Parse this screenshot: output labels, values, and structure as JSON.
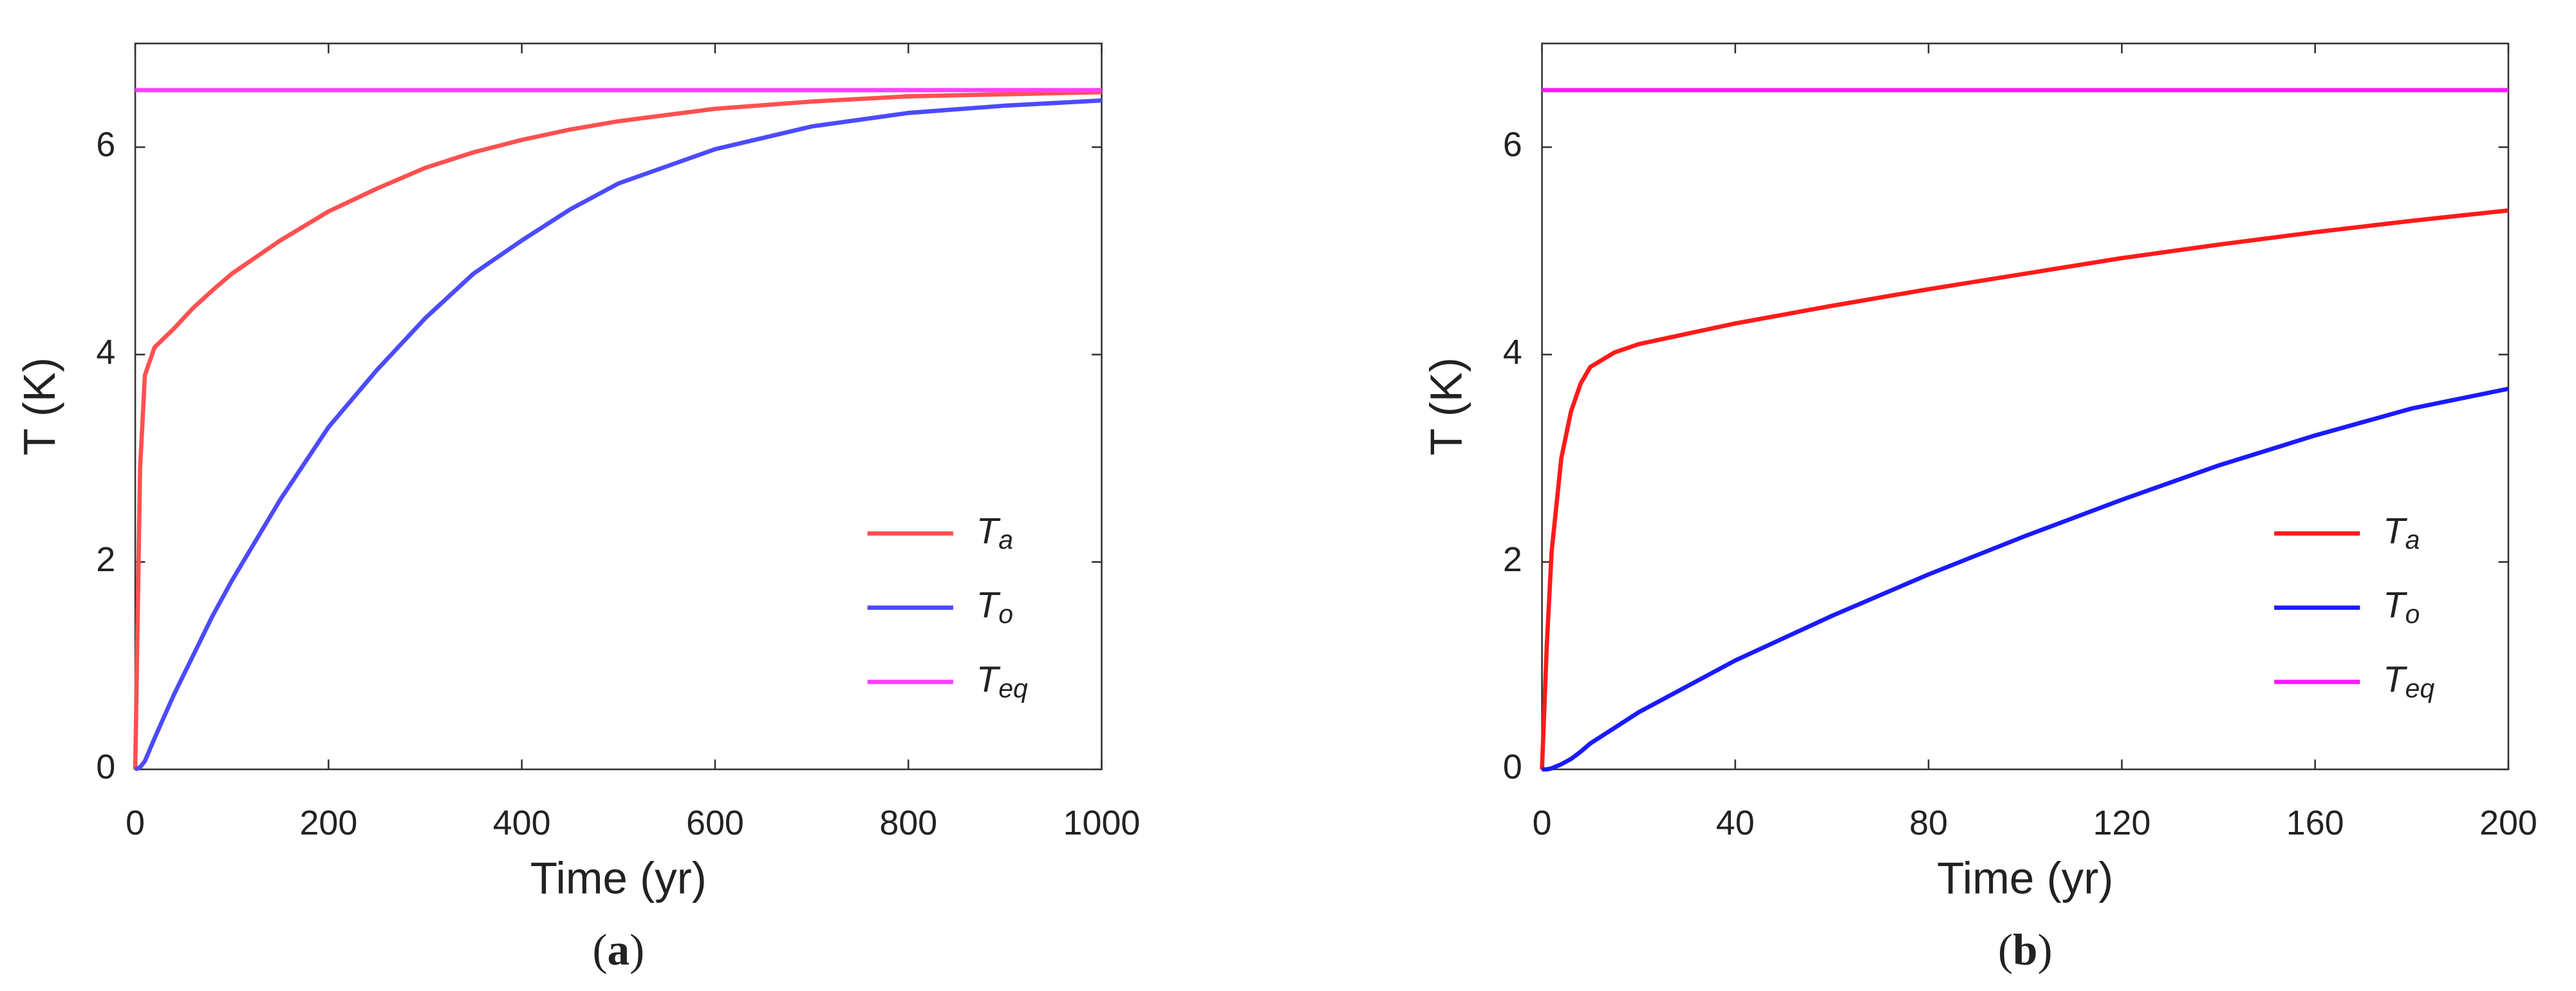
{
  "chart_data": [
    {
      "type": "line",
      "label": "(a)",
      "xlabel": "Time (yr)",
      "ylabel": "T (K)",
      "x": [
        0,
        5,
        10,
        20,
        40,
        60,
        80,
        100,
        150,
        200,
        250,
        300,
        350,
        400,
        450,
        500,
        600,
        700,
        800,
        900,
        1000
      ],
      "series": [
        {
          "name": "Ta",
          "color": "#ff5050",
          "values": [
            0,
            2.9,
            3.8,
            4.07,
            4.25,
            4.45,
            4.62,
            4.78,
            5.1,
            5.38,
            5.6,
            5.8,
            5.95,
            6.07,
            6.17,
            6.25,
            6.37,
            6.44,
            6.49,
            6.51,
            6.53
          ]
        },
        {
          "name": "To",
          "color": "#4b4bff",
          "values": [
            0,
            0.02,
            0.08,
            0.3,
            0.72,
            1.1,
            1.48,
            1.82,
            2.6,
            3.3,
            3.85,
            4.35,
            4.78,
            5.1,
            5.4,
            5.65,
            5.98,
            6.2,
            6.33,
            6.4,
            6.45
          ]
        },
        {
          "name": "Teq",
          "color": "#ff40ff",
          "values": [
            6.55,
            6.55,
            6.55,
            6.55,
            6.55,
            6.55,
            6.55,
            6.55,
            6.55,
            6.55,
            6.55,
            6.55,
            6.55,
            6.55,
            6.55,
            6.55,
            6.55,
            6.55,
            6.55,
            6.55,
            6.55
          ]
        }
      ],
      "xlim": [
        0,
        1000
      ],
      "xticks": [
        0,
        200,
        400,
        600,
        800,
        1000
      ],
      "ylim": [
        0,
        7
      ],
      "yticks": [
        0,
        2,
        4,
        6
      ],
      "grid": false,
      "legend": "lower right"
    },
    {
      "type": "line",
      "label": "(b)",
      "xlabel": "Time (yr)",
      "ylabel": "T (K)",
      "x": [
        0,
        1,
        2,
        4,
        6,
        8,
        10,
        15,
        20,
        30,
        40,
        60,
        80,
        100,
        120,
        140,
        160,
        180,
        200
      ],
      "series": [
        {
          "name": "Ta",
          "color": "#ff1a1a",
          "values": [
            0,
            1.2,
            2.1,
            3.0,
            3.45,
            3.72,
            3.88,
            4.02,
            4.1,
            4.2,
            4.3,
            4.47,
            4.63,
            4.78,
            4.93,
            5.06,
            5.18,
            5.29,
            5.39
          ]
        },
        {
          "name": "To",
          "color": "#1a1aff",
          "values": [
            0,
            0,
            0.01,
            0.05,
            0.1,
            0.17,
            0.25,
            0.4,
            0.55,
            0.8,
            1.05,
            1.48,
            1.88,
            2.25,
            2.6,
            2.93,
            3.22,
            3.48,
            3.67
          ]
        },
        {
          "name": "Teq",
          "color": "#ff1aff",
          "values": [
            6.55,
            6.55,
            6.55,
            6.55,
            6.55,
            6.55,
            6.55,
            6.55,
            6.55,
            6.55,
            6.55,
            6.55,
            6.55,
            6.55,
            6.55,
            6.55,
            6.55,
            6.55,
            6.55
          ]
        }
      ],
      "xlim": [
        0,
        200
      ],
      "xticks": [
        0,
        40,
        80,
        120,
        160,
        200
      ],
      "ylim": [
        0,
        7
      ],
      "yticks": [
        0,
        2,
        4,
        6
      ],
      "grid": false,
      "legend": "lower right"
    }
  ]
}
